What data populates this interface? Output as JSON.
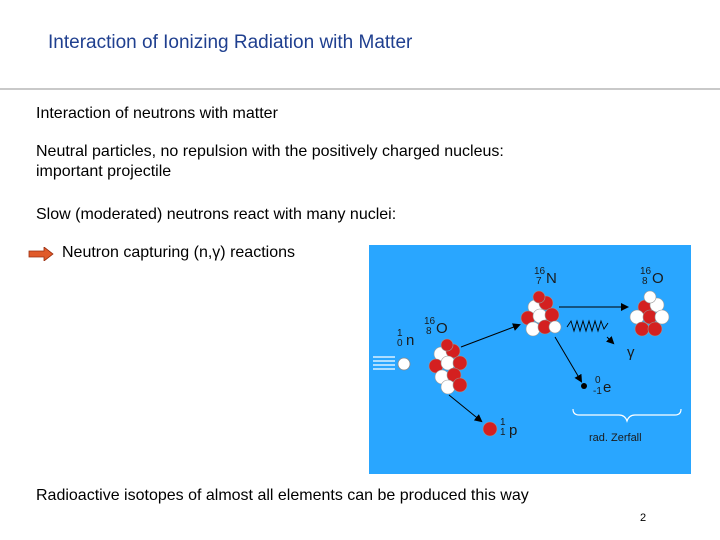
{
  "slide": {
    "title": "Interaction of Ionizing Radiation with Matter",
    "heading": "Interaction of neutrons with matter",
    "para1_line1": "Neutral particles, no repulsion with the positively charged nucleus:",
    "para1_line2": "important projectile",
    "para2": "Slow (moderated) neutrons react with many nuclei:",
    "bullet": "Neutron capturing (n,γ) reactions",
    "para3": "Radioactive isotopes of almost all elements can be produced this way",
    "page_number": "2"
  },
  "diagram": {
    "labels": {
      "n16_mass": "16",
      "n16_z": "7",
      "n16_sym": "N",
      "o16a_mass": "16",
      "o16a_z": "8",
      "o16a_sym": "O",
      "o16b_mass": "16",
      "o16b_z": "8",
      "o16b_sym": "O",
      "n_mass": "1",
      "n_z": "0",
      "n_sym": "n",
      "gamma": "γ",
      "e_mass": "0",
      "e_z": "-1",
      "e_sym": "e",
      "p_mass": "1",
      "p_z": "1",
      "p_sym": "p",
      "decay": "rad. Zerfall"
    }
  },
  "colors": {
    "title": "#1f3f8f",
    "panel": "#29a6ff",
    "proton": "#d42020",
    "bullet_arrow": "#e05a2a"
  }
}
